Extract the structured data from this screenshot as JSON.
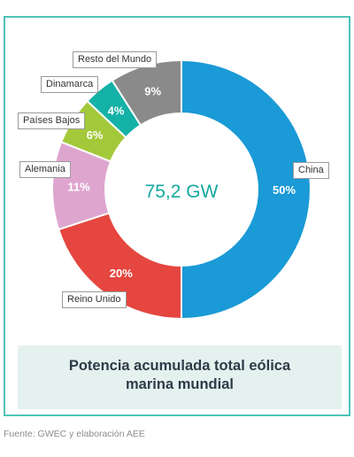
{
  "chart_data": {
    "type": "pie",
    "variant": "donut",
    "center_label": "75,2 GW",
    "title": "Potencia acumulada total eólica marina mundial",
    "source": "Fuente: GWEC y elaboración AEE",
    "slices": [
      {
        "label": "China",
        "value": 50,
        "display": "50%",
        "color": "#1a9ad6"
      },
      {
        "label": "Reino Unido",
        "value": 20,
        "display": "20%",
        "color": "#e5463f"
      },
      {
        "label": "Alemania",
        "value": 11,
        "display": "11%",
        "color": "#dea6cf"
      },
      {
        "label": "Países Bajos",
        "value": 6,
        "display": "6%",
        "color": "#a3c93a"
      },
      {
        "label": "Dinamarca",
        "value": 4,
        "display": "4%",
        "color": "#14b1a6"
      },
      {
        "label": "Resto del Mundo",
        "value": 9,
        "display": "9%",
        "color": "#8a8a8a"
      }
    ]
  },
  "caption": {
    "line1": "Potencia acumulada total eólica",
    "line2": "marina mundial"
  }
}
